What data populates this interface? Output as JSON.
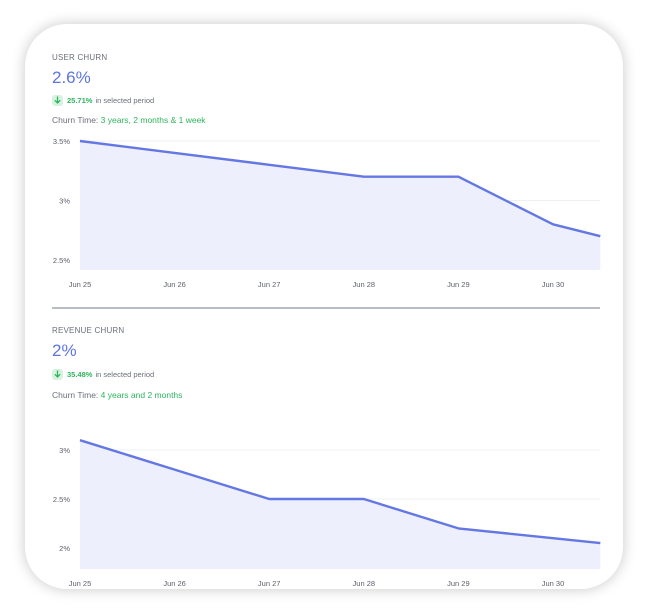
{
  "colors": {
    "line": "#6477e3",
    "area": "#edf0fc",
    "positive": "#2db55d",
    "grid": "#eef0f4"
  },
  "user_churn": {
    "label": "USER CHURN",
    "value": "2.6%",
    "change_pct": "25.71%",
    "change_text": "in selected period",
    "churn_time_label": "Churn Time:",
    "churn_time_value": "3 years, 2 months & 1 week"
  },
  "revenue_churn": {
    "label": "REVENUE CHURN",
    "value": "2%",
    "change_pct": "35.48%",
    "change_text": "in selected period",
    "churn_time_label": "Churn Time:",
    "churn_time_value": "4 years and 2 months"
  },
  "chart_data": [
    {
      "type": "area",
      "categories": [
        "Jun 25",
        "Jun 26",
        "Jun 27",
        "Jun 28",
        "Jun 29",
        "Jun 30"
      ],
      "x": [
        0,
        1,
        2,
        3,
        4,
        5,
        5.5
      ],
      "values": [
        3.5,
        3.4,
        3.3,
        3.2,
        3.2,
        2.8,
        2.7
      ],
      "ylim": [
        2.5,
        3.5
      ],
      "yticks": [
        3.5,
        3,
        2.5
      ],
      "ytick_labels": [
        "3.5%",
        "3%",
        "2.5%"
      ]
    },
    {
      "type": "area",
      "categories": [
        "Jun 25",
        "Jun 26",
        "Jun 27",
        "Jun 28",
        "Jun 29",
        "Jun 30"
      ],
      "x": [
        0,
        1,
        2,
        3,
        4,
        5,
        5.5
      ],
      "values": [
        3.1,
        2.8,
        2.5,
        2.5,
        2.2,
        2.1,
        2.05
      ],
      "ylim": [
        2,
        3
      ],
      "yticks": [
        3,
        2.5,
        2
      ],
      "ytick_labels": [
        "3%",
        "2.5%",
        "2%"
      ]
    }
  ]
}
